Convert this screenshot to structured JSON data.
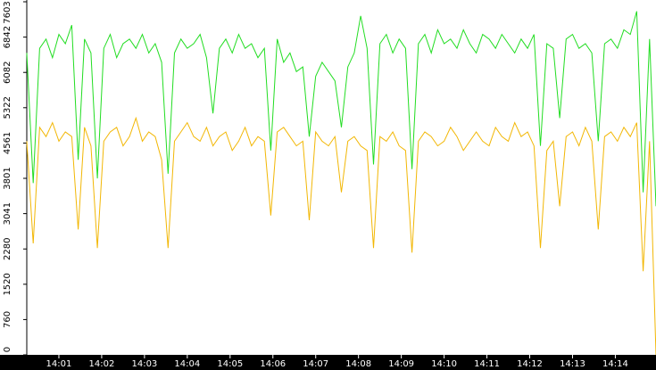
{
  "chart_data": {
    "type": "line",
    "x": [
      0.25,
      0.4,
      0.55,
      0.7,
      0.85,
      1,
      1.15,
      1.3,
      1.45,
      1.6,
      1.75,
      1.9,
      2.05,
      2.2,
      2.35,
      2.5,
      2.65,
      2.8,
      2.95,
      3.1,
      3.25,
      3.4,
      3.55,
      3.7,
      3.85,
      4,
      4.15,
      4.3,
      4.45,
      4.6,
      4.75,
      4.9,
      5.05,
      5.2,
      5.35,
      5.5,
      5.65,
      5.8,
      5.95,
      6.1,
      6.25,
      6.4,
      6.55,
      6.7,
      6.85,
      7,
      7.15,
      7.3,
      7.45,
      7.6,
      7.75,
      7.9,
      8.05,
      8.2,
      8.35,
      8.5,
      8.65,
      8.8,
      8.95,
      9.1,
      9.25,
      9.4,
      9.55,
      9.7,
      9.85,
      10,
      10.15,
      10.3,
      10.45,
      10.6,
      10.75,
      10.9,
      11.05,
      11.2,
      11.35,
      11.5,
      11.65,
      11.8,
      11.95,
      12.1,
      12.25,
      12.4,
      12.55,
      12.7,
      12.85,
      13,
      13.15,
      13.3,
      13.45,
      13.6,
      13.75,
      13.9,
      14.05,
      14.2,
      14.35,
      14.5,
      14.65,
      14.8,
      14.95
    ],
    "series": [
      {
        "color": "#22dd22",
        "values": [
          6500,
          3700,
          6600,
          6800,
          6400,
          6900,
          6700,
          7100,
          4200,
          6800,
          6500,
          3800,
          6600,
          6900,
          6400,
          6700,
          6800,
          6600,
          6900,
          6500,
          6700,
          6300,
          3900,
          6500,
          6800,
          6600,
          6700,
          6900,
          6400,
          5200,
          6600,
          6800,
          6500,
          6900,
          6600,
          6700,
          6400,
          6600,
          4400,
          6800,
          6300,
          6500,
          6100,
          6200,
          4700,
          6000,
          6300,
          6100,
          5900,
          4900,
          6200,
          6500,
          7300,
          6600,
          4100,
          6700,
          6900,
          6500,
          6800,
          6600,
          4000,
          6700,
          6900,
          6500,
          7000,
          6700,
          6800,
          6600,
          7000,
          6700,
          6500,
          6900,
          6800,
          6600,
          6900,
          6700,
          6500,
          6800,
          6600,
          6900,
          4500,
          6700,
          6600,
          5100,
          6800,
          6900,
          6600,
          6700,
          6500,
          4600,
          6700,
          6800,
          6600,
          7000,
          6900,
          7400,
          3500,
          6800,
          3200
        ]
      },
      {
        "color": "#f2b705",
        "values": [
          4600,
          2400,
          4900,
          4700,
          5000,
          4600,
          4800,
          4700,
          2700,
          4900,
          4500,
          2300,
          4600,
          4800,
          4900,
          4500,
          4700,
          5100,
          4600,
          4800,
          4700,
          4200,
          2300,
          4600,
          4800,
          5000,
          4700,
          4600,
          4900,
          4500,
          4700,
          4800,
          4400,
          4600,
          4900,
          4500,
          4700,
          4600,
          3000,
          4800,
          4900,
          4700,
          4500,
          4600,
          2900,
          4800,
          4600,
          4500,
          4700,
          3500,
          4600,
          4700,
          4500,
          4400,
          2300,
          4700,
          4600,
          4800,
          4500,
          4400,
          2200,
          4600,
          4800,
          4700,
          4500,
          4600,
          4900,
          4700,
          4400,
          4600,
          4800,
          4600,
          4500,
          4900,
          4700,
          4600,
          5000,
          4700,
          4800,
          4500,
          2300,
          4400,
          4600,
          3200,
          4700,
          4800,
          4500,
          4900,
          4600,
          2700,
          4700,
          4800,
          4600,
          4900,
          4700,
          5000,
          1800,
          4600,
          0
        ]
      }
    ],
    "xlim": [
      0.25,
      14.95
    ],
    "xticks": [
      {
        "value": 1,
        "label": "14:01"
      },
      {
        "value": 2,
        "label": "14:02"
      },
      {
        "value": 3,
        "label": "14:03"
      },
      {
        "value": 4,
        "label": "14:04"
      },
      {
        "value": 5,
        "label": "14:05"
      },
      {
        "value": 6,
        "label": "14:06"
      },
      {
        "value": 7,
        "label": "14:07"
      },
      {
        "value": 8,
        "label": "14:08"
      },
      {
        "value": 9,
        "label": "14:09"
      },
      {
        "value": 10,
        "label": "14:10"
      },
      {
        "value": 11,
        "label": "14:11"
      },
      {
        "value": 12,
        "label": "14:12"
      },
      {
        "value": 13,
        "label": "14:13"
      },
      {
        "value": 14,
        "label": "14:14"
      }
    ],
    "ylim": [
      0,
      7603
    ],
    "yticks": [
      0,
      760,
      1520,
      2280,
      3041,
      3801,
      4561,
      5322,
      6082,
      6842,
      7603
    ]
  }
}
